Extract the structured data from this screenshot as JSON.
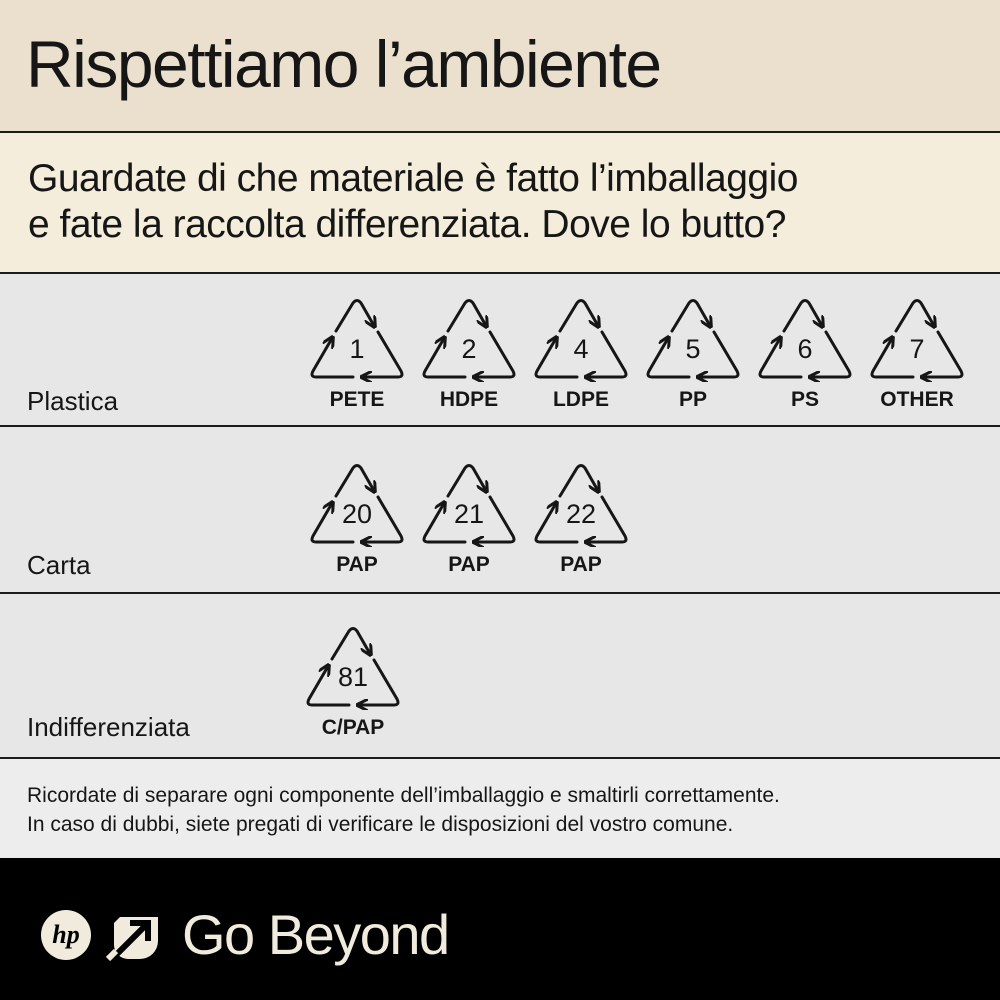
{
  "header": {
    "title": "Rispettiamo l’ambiente"
  },
  "subtitle": {
    "line1": "Guardate di che materiale è fatto l’imballaggio",
    "line2": "e fate la raccolta differenziata.  Dove lo butto?"
  },
  "categories": [
    {
      "label": "Plastica",
      "symbols": [
        {
          "number": "1",
          "code": "PETE"
        },
        {
          "number": "2",
          "code": "HDPE"
        },
        {
          "number": "4",
          "code": "LDPE"
        },
        {
          "number": "5",
          "code": "PP"
        },
        {
          "number": "6",
          "code": "PS"
        },
        {
          "number": "7",
          "code": "OTHER"
        }
      ]
    },
    {
      "label": "Carta",
      "symbols": [
        {
          "number": "20",
          "code": "PAP"
        },
        {
          "number": "21",
          "code": "PAP"
        },
        {
          "number": "22",
          "code": "PAP"
        }
      ]
    },
    {
      "label": "Indifferenziata",
      "symbols": [
        {
          "number": "81",
          "code": "C/PAP"
        }
      ]
    }
  ],
  "note": {
    "line1": "Ricordate di separare ogni componente dell’imballaggio e smaltirli correttamente.",
    "line2": "In caso di dubbi, siete pregati di verificare le disposizioni del vostro comune."
  },
  "footer": {
    "logo": "hp",
    "tagline": "Go Beyond",
    "icons": [
      "hp-logo-icon",
      "arrow-leaf-icon"
    ]
  },
  "colors": {
    "header_bg": "#eae0cd",
    "subtitle_bg": "#f4eddb",
    "row_bg": "#e7e7e7",
    "footer_bg": "#000000",
    "footer_text": "#f0ebdd"
  }
}
